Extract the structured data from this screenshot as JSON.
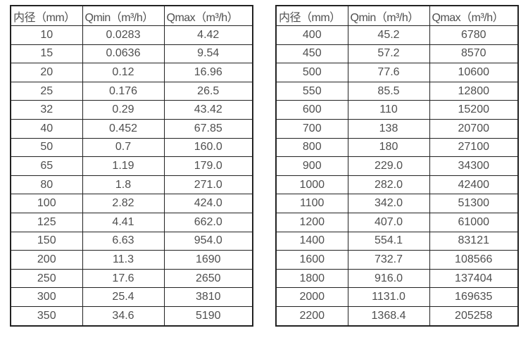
{
  "colors": {
    "background": "#ffffff",
    "border": "#222222",
    "text": "#4f4f4f"
  },
  "chart_data": [
    {
      "type": "table",
      "title": "",
      "columns": [
        "内径（mm）",
        "Qmin（m³/h）",
        "Qmax（m³/h）"
      ],
      "rows": [
        [
          "10",
          "0.0283",
          "4.42"
        ],
        [
          "15",
          "0.0636",
          "9.54"
        ],
        [
          "20",
          "0.12",
          "16.96"
        ],
        [
          "25",
          "0.176",
          "26.5"
        ],
        [
          "32",
          "0.29",
          "43.42"
        ],
        [
          "40",
          "0.452",
          "67.85"
        ],
        [
          "50",
          "0.7",
          "160.0"
        ],
        [
          "65",
          "1.19",
          "179.0"
        ],
        [
          "80",
          "1.8",
          "271.0"
        ],
        [
          "100",
          "2.82",
          "424.0"
        ],
        [
          "125",
          "4.41",
          "662.0"
        ],
        [
          "150",
          "6.63",
          "954.0"
        ],
        [
          "200",
          "11.3",
          "1690"
        ],
        [
          "250",
          "17.6",
          "2650"
        ],
        [
          "300",
          "25.4",
          "3810"
        ],
        [
          "350",
          "34.6",
          "5190"
        ]
      ]
    },
    {
      "type": "table",
      "title": "",
      "columns": [
        "内径（mm）",
        "Qmin（m³/h）",
        "Qmax（m³/h）"
      ],
      "rows": [
        [
          "400",
          "45.2",
          "6780"
        ],
        [
          "450",
          "57.2",
          "8570"
        ],
        [
          "500",
          "77.6",
          "10600"
        ],
        [
          "550",
          "85.5",
          "12800"
        ],
        [
          "600",
          "110",
          "15200"
        ],
        [
          "700",
          "138",
          "20700"
        ],
        [
          "800",
          "180",
          "27100"
        ],
        [
          "900",
          "229.0",
          "34300"
        ],
        [
          "1000",
          "282.0",
          "42400"
        ],
        [
          "1100",
          "342.0",
          "51300"
        ],
        [
          "1200",
          "407.0",
          "61000"
        ],
        [
          "1400",
          "554.1",
          "83121"
        ],
        [
          "1600",
          "732.7",
          "108566"
        ],
        [
          "1800",
          "916.0",
          "137404"
        ],
        [
          "2000",
          "1131.0",
          "169635"
        ],
        [
          "2200",
          "1368.4",
          "205258"
        ]
      ]
    }
  ]
}
